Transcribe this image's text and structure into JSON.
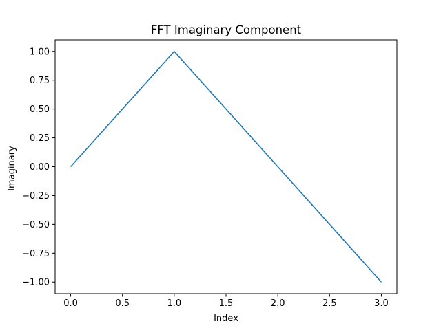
{
  "chart_data": {
    "type": "line",
    "title": "FFT Imaginary Component",
    "xlabel": "Index",
    "ylabel": "Imaginary",
    "x": [
      0,
      1,
      2,
      3
    ],
    "series": [
      {
        "values": [
          0.0,
          1.0,
          0.0,
          -1.0
        ],
        "color": "#1f77b4"
      }
    ],
    "xlim": [
      -0.15,
      3.15
    ],
    "ylim": [
      -1.1,
      1.1
    ],
    "xticks": [
      0.0,
      0.5,
      1.0,
      1.5,
      2.0,
      2.5,
      3.0
    ],
    "xtick_labels": [
      "0.0",
      "0.5",
      "1.0",
      "1.5",
      "2.0",
      "2.5",
      "3.0"
    ],
    "yticks": [
      1.0,
      0.75,
      0.5,
      0.25,
      0.0,
      -0.25,
      -0.5,
      -0.75,
      -1.0
    ],
    "ytick_labels": [
      "1.00",
      "0.75",
      "0.50",
      "0.25",
      "0.00",
      "−0.25",
      "−0.50",
      "−0.75",
      "−1.00"
    ],
    "grid": false,
    "legend": "none"
  }
}
